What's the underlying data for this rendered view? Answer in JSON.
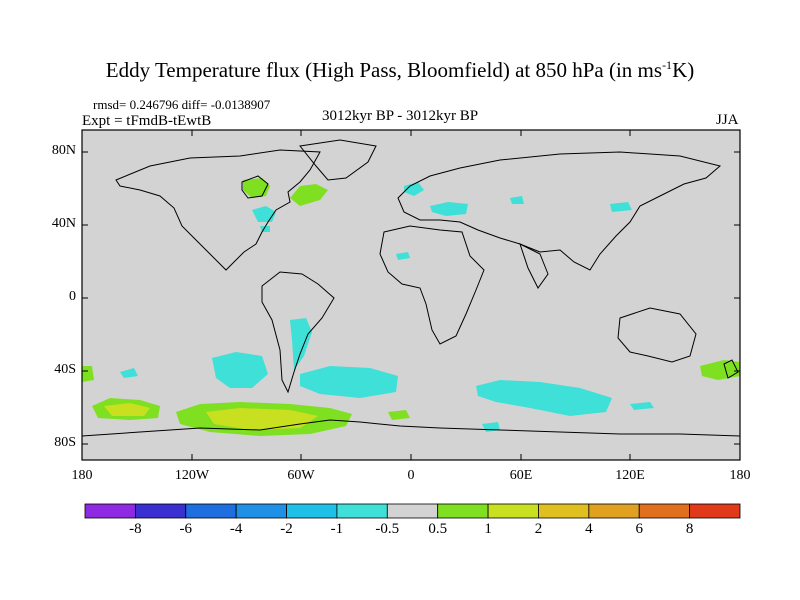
{
  "title_pre": "Eddy Temperature flux (High Pass, Bloomfield) at 850 hPa (in ms",
  "title_sup": "-1",
  "title_post": "K)",
  "stats": "rmsd= 0.246796 diff= -0.0138907",
  "expt": "Expt = tFmdB-tEwtB",
  "period": "3012kyr BP - 3012kyr BP",
  "season": "JJA",
  "lat_labels": [
    "80N",
    "40N",
    "0",
    "40S",
    "80S"
  ],
  "lon_labels": [
    "180",
    "120W",
    "60W",
    "0",
    "60E",
    "120E",
    "180"
  ],
  "colorbar": {
    "labels": [
      "-8",
      "-6",
      "-4",
      "-2",
      "-1",
      "-0.5",
      "0.5",
      "1",
      "2",
      "4",
      "6",
      "8"
    ],
    "colors": [
      "#8e2be2",
      "#3a2fd0",
      "#1e6ee0",
      "#1e90e6",
      "#1ec0e8",
      "#3ee0d8",
      "#d3d3d3",
      "#7fe021",
      "#c8e020",
      "#e0c020",
      "#e0a020",
      "#e07020",
      "#e03a1a"
    ]
  },
  "map_colors": {
    "ocean_fill": "#d3d3d3",
    "neg_small": "#3ee0d8",
    "pos_small": "#7fe021",
    "pos_medium": "#c8e020"
  }
}
